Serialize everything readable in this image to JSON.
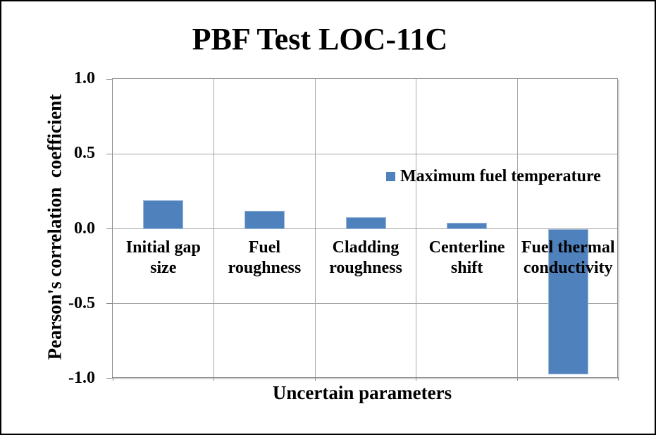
{
  "chart_data": {
    "type": "bar",
    "title": "PBF Test LOC-11C",
    "xlabel": "Uncertain parameters",
    "ylabel": "Pearson's correlation  coefficient",
    "categories": [
      "Initial gap size",
      "Fuel roughness",
      "Cladding roughness",
      "Centerline shift",
      "Fuel thermal conductivity"
    ],
    "category_display_lines": [
      [
        "Initial gap",
        "size"
      ],
      [
        "Fuel",
        "roughness"
      ],
      [
        "Cladding",
        "roughness"
      ],
      [
        "Centerline",
        "shift"
      ],
      [
        "Fuel thermal",
        "conductivity"
      ]
    ],
    "series": [
      {
        "name": "Maximum fuel temperature",
        "values": [
          0.19,
          0.12,
          0.08,
          0.04,
          -0.97
        ],
        "color": "#4F81BD"
      }
    ],
    "legend": {
      "label": "Maximum fuel temperature",
      "marker_color": "#4F81BD",
      "position": "top-right-inside"
    },
    "ylim": [
      -1.0,
      1.0
    ],
    "ytick_step": 0.5,
    "ytick_labels": [
      "1.0",
      "0.5",
      "0.0",
      "-0.5",
      "-1.0"
    ],
    "grid": true,
    "colors": {
      "bar_fill": "#4F81BD",
      "bar_edge": "#9CB8DC",
      "gridline": "#A6A6A6",
      "plot_border": "#8C8C8C",
      "text": "#000000",
      "background": "#FFFFFF",
      "frame_border": "#000000"
    }
  }
}
